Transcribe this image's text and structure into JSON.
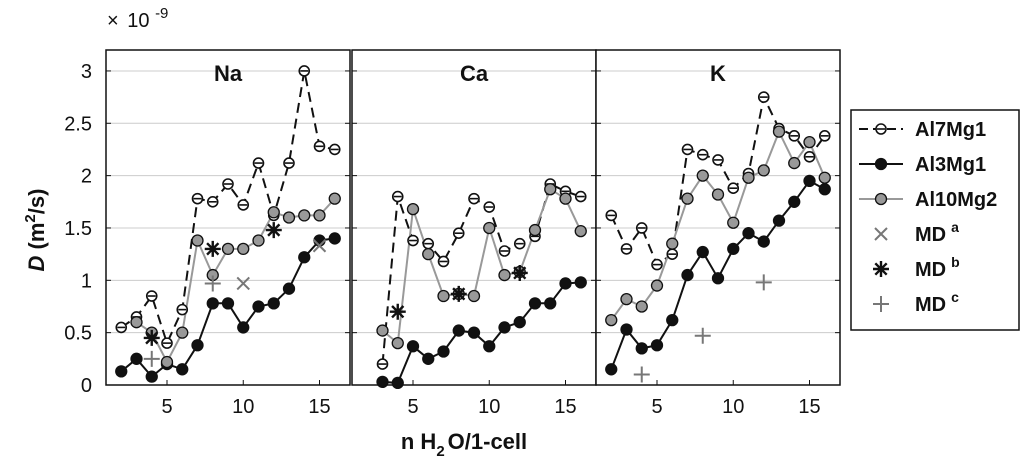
{
  "chart_data": {
    "type": "line",
    "ylabel": {
      "italic": "D",
      "rest": " (m",
      "sup": "2",
      "tail": "/s)"
    },
    "xlabel": {
      "pre": "n H",
      "sub": "2",
      "post": "O/1-cell"
    },
    "scale_label": {
      "times": "×",
      "base": "10",
      "exp": "-9"
    },
    "ylim": [
      0,
      3.2
    ],
    "xlim": [
      1,
      17
    ],
    "y_ticks": [
      "0",
      "0.5",
      "1",
      "1.5",
      "2",
      "2.5",
      "3"
    ],
    "y_tick_values": [
      0,
      0.5,
      1,
      1.5,
      2,
      2.5,
      3
    ],
    "x_ticks": [
      "5",
      "10",
      "15"
    ],
    "x_tick_values": [
      5,
      10,
      15
    ],
    "grid": "horizontal",
    "legend_position": "right",
    "legend": [
      {
        "key": "al7",
        "label": "Al7Mg1",
        "sup": ""
      },
      {
        "key": "al3",
        "label": "Al3Mg1",
        "sup": ""
      },
      {
        "key": "al10",
        "label": "Al10Mg2",
        "sup": ""
      },
      {
        "key": "mda",
        "label": "MD",
        "sup": "a"
      },
      {
        "key": "mdb",
        "label": "MD",
        "sup": "b"
      },
      {
        "key": "mdc",
        "label": "MD",
        "sup": "c"
      }
    ],
    "styles": {
      "al7": {
        "line": "#111111",
        "dash": "10,6",
        "marker": "open-circle-bar",
        "fill": "#ffffff"
      },
      "al3": {
        "line": "#111111",
        "dash": "",
        "marker": "circle",
        "fill": "#111111"
      },
      "al10": {
        "line": "#999999",
        "dash": "",
        "marker": "circle",
        "fill": "#999999"
      },
      "mda": {
        "color": "#777777",
        "marker": "x"
      },
      "mdb": {
        "color": "#111111",
        "marker": "asterisk"
      },
      "mdc": {
        "color": "#777777",
        "marker": "plus"
      }
    },
    "panels": [
      {
        "title": "Na",
        "series": [
          {
            "key": "al7",
            "x": [
              2,
              3,
              4,
              5,
              6,
              7,
              8,
              9,
              10,
              11,
              12,
              13,
              14,
              15,
              16
            ],
            "y": [
              0.55,
              0.65,
              0.85,
              0.4,
              0.72,
              1.78,
              1.75,
              1.92,
              1.72,
              2.12,
              1.62,
              2.12,
              3.0,
              2.28,
              2.25
            ]
          },
          {
            "key": "al3",
            "x": [
              2,
              3,
              4,
              5,
              6,
              7,
              8,
              9,
              10,
              11,
              12,
              13,
              14,
              15,
              16
            ],
            "y": [
              0.13,
              0.25,
              0.08,
              0.2,
              0.15,
              0.38,
              0.78,
              0.78,
              0.55,
              0.75,
              0.78,
              0.92,
              1.22,
              1.38,
              1.4
            ]
          },
          {
            "key": "al10",
            "x": [
              3,
              4,
              5,
              6,
              7,
              8,
              9,
              10,
              11,
              12,
              13,
              14,
              15,
              16
            ],
            "y": [
              0.6,
              0.5,
              0.22,
              0.5,
              1.38,
              1.05,
              1.3,
              1.3,
              1.38,
              1.65,
              1.6,
              1.62,
              1.62,
              1.78
            ]
          },
          {
            "key": "mda",
            "x": [
              10,
              15
            ],
            "y": [
              0.97,
              1.33
            ]
          },
          {
            "key": "mdb",
            "x": [
              4,
              8,
              12
            ],
            "y": [
              0.45,
              1.3,
              1.48
            ]
          },
          {
            "key": "mdc",
            "x": [
              4,
              8
            ],
            "y": [
              0.25,
              0.97
            ]
          }
        ]
      },
      {
        "title": "Ca",
        "series": [
          {
            "key": "al7",
            "x": [
              3,
              4,
              5,
              6,
              7,
              8,
              9,
              10,
              11,
              12,
              13,
              14,
              15,
              16
            ],
            "y": [
              0.2,
              1.8,
              1.38,
              1.35,
              1.18,
              1.45,
              1.78,
              1.7,
              1.28,
              1.35,
              1.42,
              1.92,
              1.85,
              1.8
            ]
          },
          {
            "key": "al3",
            "x": [
              3,
              4,
              5,
              6,
              7,
              8,
              9,
              10,
              11,
              12,
              13,
              14,
              15,
              16
            ],
            "y": [
              0.03,
              0.02,
              0.37,
              0.25,
              0.32,
              0.52,
              0.5,
              0.37,
              0.55,
              0.6,
              0.78,
              0.78,
              0.97,
              0.98
            ]
          },
          {
            "key": "al10",
            "x": [
              3,
              4,
              5,
              6,
              7,
              8,
              9,
              10,
              11,
              12,
              13,
              14,
              15,
              16
            ],
            "y": [
              0.52,
              0.4,
              1.68,
              1.25,
              0.85,
              0.87,
              0.85,
              1.5,
              1.05,
              1.08,
              1.48,
              1.87,
              1.78,
              1.47
            ]
          },
          {
            "key": "mdb",
            "x": [
              4,
              8,
              12
            ],
            "y": [
              0.7,
              0.87,
              1.07
            ]
          }
        ]
      },
      {
        "title": "K",
        "series": [
          {
            "key": "al7",
            "x": [
              2,
              3,
              4,
              5,
              6,
              7,
              8,
              9,
              10,
              11,
              12,
              13,
              14,
              15,
              16
            ],
            "y": [
              1.62,
              1.3,
              1.5,
              1.15,
              1.25,
              2.25,
              2.2,
              2.15,
              1.88,
              2.02,
              2.75,
              2.45,
              2.38,
              2.18,
              2.38
            ]
          },
          {
            "key": "al3",
            "x": [
              2,
              3,
              4,
              5,
              6,
              7,
              8,
              9,
              10,
              11,
              12,
              13,
              14,
              15,
              16
            ],
            "y": [
              0.15,
              0.53,
              0.35,
              0.38,
              0.62,
              1.05,
              1.27,
              1.02,
              1.3,
              1.45,
              1.37,
              1.57,
              1.75,
              1.95,
              1.87
            ]
          },
          {
            "key": "al10",
            "x": [
              2,
              3,
              4,
              5,
              6,
              7,
              8,
              9,
              10,
              11,
              12,
              13,
              14,
              15,
              16
            ],
            "y": [
              0.62,
              0.82,
              0.75,
              0.95,
              1.35,
              1.78,
              2.0,
              1.82,
              1.55,
              1.98,
              2.05,
              2.42,
              2.12,
              2.32,
              1.98
            ]
          },
          {
            "key": "mdc",
            "x": [
              4,
              8,
              12
            ],
            "y": [
              0.1,
              0.47,
              0.98
            ]
          }
        ]
      }
    ]
  }
}
